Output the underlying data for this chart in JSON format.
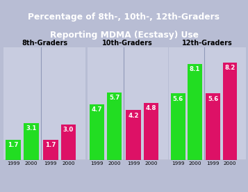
{
  "title_line1": "Percentage of 8th-, 10th-, 12th-Graders",
  "title_line2": "Reporting MDMA (Ecstasy) Use",
  "title_bg": "#2d5aa0",
  "title_color": "white",
  "panel_bg": "#b8bdd4",
  "plot_bg": "#c8cce0",
  "groups": [
    "8th-Graders",
    "10th-Graders",
    "12th-Graders"
  ],
  "values": {
    "8th-Graders": {
      "Males": [
        1.7,
        3.1
      ],
      "Females": [
        1.7,
        3.0
      ]
    },
    "10th-Graders": {
      "Males": [
        4.7,
        5.7
      ],
      "Females": [
        4.2,
        4.8
      ]
    },
    "12th-Graders": {
      "Males": [
        5.6,
        8.1
      ],
      "Females": [
        5.6,
        8.2
      ]
    }
  },
  "green": "#22dd22",
  "red": "#dd1166",
  "ylim": [
    0,
    9.5
  ],
  "figsize": [
    3.57,
    2.76
  ],
  "dpi": 100
}
